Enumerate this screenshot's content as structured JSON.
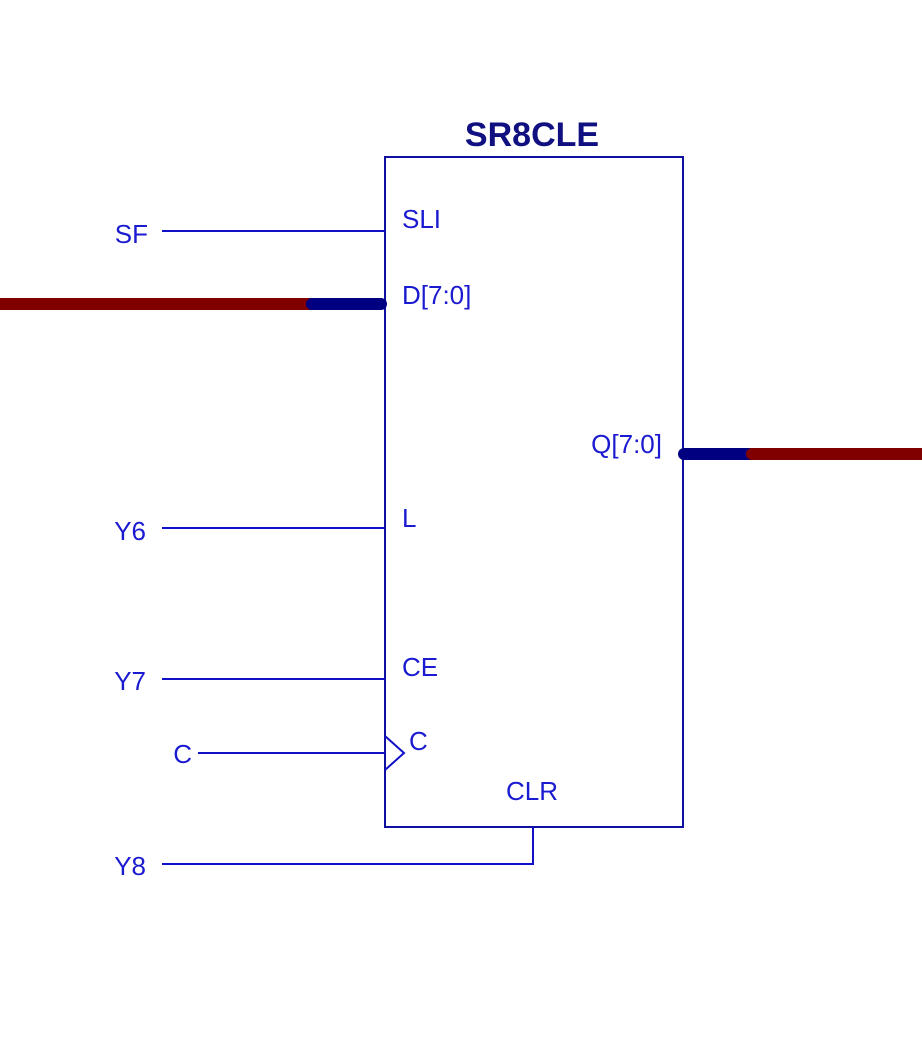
{
  "component": {
    "name": "SR8CLE",
    "pins": {
      "sli": "SLI",
      "d": "D[7:0]",
      "q": "Q[7:0]",
      "l": "L",
      "ce": "CE",
      "c": "C",
      "clr": "CLR"
    }
  },
  "nets": {
    "sf": "SF",
    "y6": "Y6",
    "y7": "Y7",
    "c": "C",
    "y8": "Y8"
  },
  "colors": {
    "wire": "#1010c8",
    "label": "#1a1ad0",
    "title": "#101080",
    "bus_outer": "#800000",
    "bus_inner": "#000080"
  }
}
